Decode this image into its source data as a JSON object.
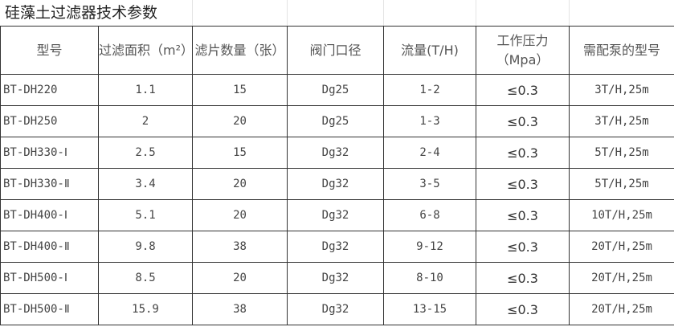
{
  "title": "硅藻土过滤器技术参数",
  "headers": [
    "型号",
    "过滤面积（m²）",
    "滤片数量（张）",
    "阀门口径",
    "流量(T/H)",
    "工作压力（Mpa）",
    "需配泵的型号"
  ],
  "rows": [
    [
      "BT-DH220",
      "1.1",
      "15",
      "Dg25",
      "1-2",
      "≤0.3",
      "3T/H,25m"
    ],
    [
      "BT-DH250",
      "2",
      "20",
      "Dg25",
      "1-3",
      "≤0.3",
      "3T/H,25m"
    ],
    [
      "BT-DH330-Ⅰ",
      "2.5",
      "15",
      "Dg32",
      "2-4",
      "≤0.3",
      "5T/H,25m"
    ],
    [
      "BT-DH330-Ⅱ",
      "3.4",
      "20",
      "Dg32",
      "3-5",
      "≤0.3",
      "5T/H,25m"
    ],
    [
      "BT-DH400-Ⅰ",
      "5.1",
      "20",
      "Dg32",
      "6-8",
      "≤0.3",
      "10T/H,25m"
    ],
    [
      "BT-DH400-Ⅱ",
      "9.8",
      "38",
      "Dg32",
      "9-12",
      "≤0.3",
      "20T/H,25m"
    ],
    [
      "BT-DH500-Ⅰ",
      "8.5",
      "20",
      "Dg32",
      "8-10",
      "≤0.3",
      "20T/H,25m"
    ],
    [
      "BT-DH500-Ⅱ",
      "15.9",
      "38",
      "Dg32",
      "13-15",
      "≤0.3",
      "20T/H,25m"
    ]
  ]
}
